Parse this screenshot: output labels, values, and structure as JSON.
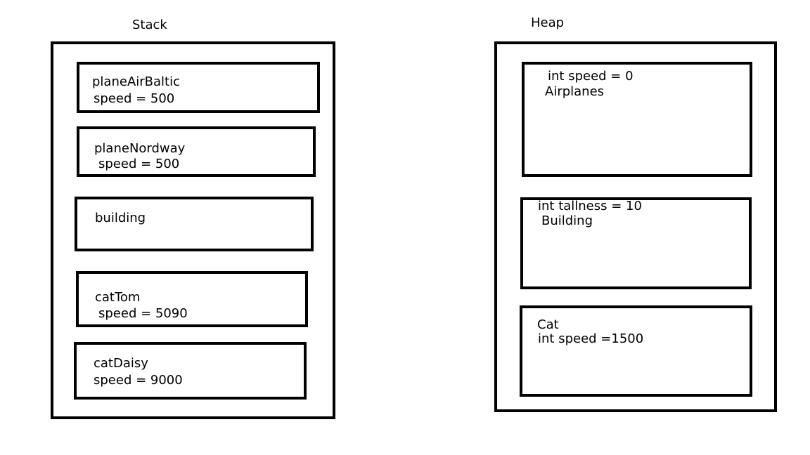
{
  "stack": {
    "title": "Stack",
    "items": [
      {
        "line1": "planeAirBaltic",
        "line2": "speed = 500"
      },
      {
        "line1": "planeNordway",
        "line2": "speed = 500"
      },
      {
        "line1": "building",
        "line2": ""
      },
      {
        "line1": "catTom",
        "line2": "speed = 5090"
      },
      {
        "line1": "catDaisy",
        "line2": "speed = 9000"
      }
    ]
  },
  "heap": {
    "title": "Heap",
    "items": [
      {
        "line1": "int speed = 0",
        "line2": "Airplanes"
      },
      {
        "line1": "int tallness = 10",
        "line2": "Building"
      },
      {
        "line1": "Cat",
        "line2": "int speed =1500"
      }
    ]
  }
}
